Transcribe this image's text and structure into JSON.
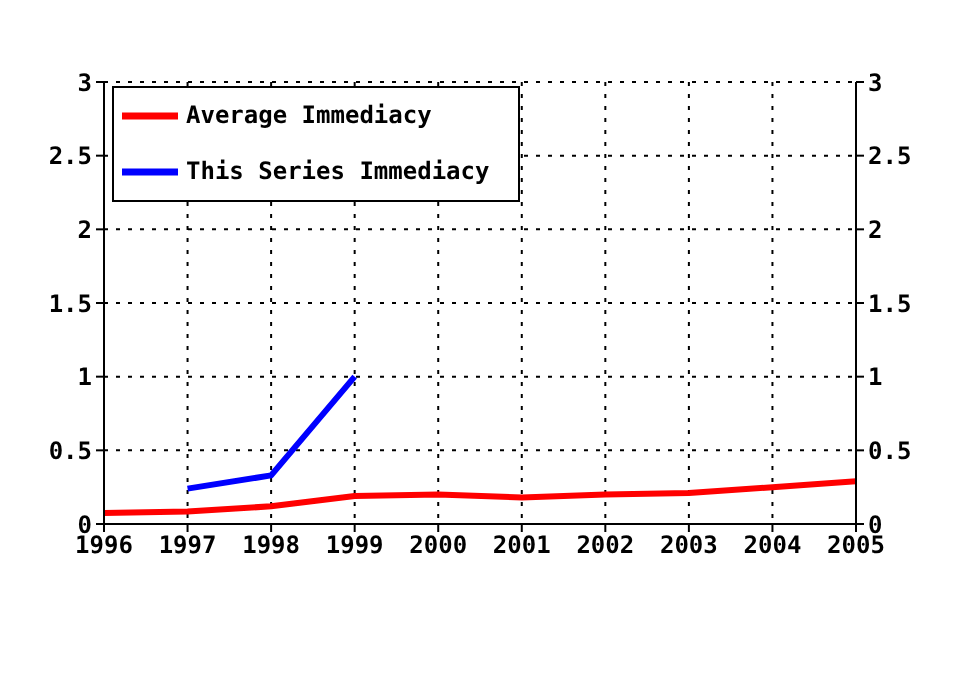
{
  "chart_data": {
    "type": "line",
    "x": [
      1996,
      1997,
      1998,
      1999,
      2000,
      2001,
      2002,
      2003,
      2004,
      2005
    ],
    "series": [
      {
        "name": "This Series Immediacy",
        "color": "#0000ff",
        "values": [
          null,
          0.24,
          0.33,
          1.0,
          null,
          null,
          null,
          null,
          null,
          null
        ]
      },
      {
        "name": "Average Immediacy",
        "color": "#ff0000",
        "values": [
          0.075,
          0.085,
          0.12,
          0.19,
          0.2,
          0.18,
          0.2,
          0.21,
          0.25,
          0.29
        ]
      }
    ],
    "xlim": [
      1996,
      2005
    ],
    "xticks": [
      1996,
      1997,
      1998,
      1999,
      2000,
      2001,
      2002,
      2003,
      2004,
      2005
    ],
    "ylim": [
      0,
      3
    ],
    "yticks": [
      0,
      0.5,
      1,
      1.5,
      2,
      2.5,
      3
    ],
    "y2lim": [
      0,
      3
    ],
    "y2ticks": [
      0,
      0.5,
      1,
      1.5,
      2,
      2.5,
      3
    ],
    "grid": true,
    "legend": "top left",
    "marker": "none",
    "line_style": "solid"
  }
}
